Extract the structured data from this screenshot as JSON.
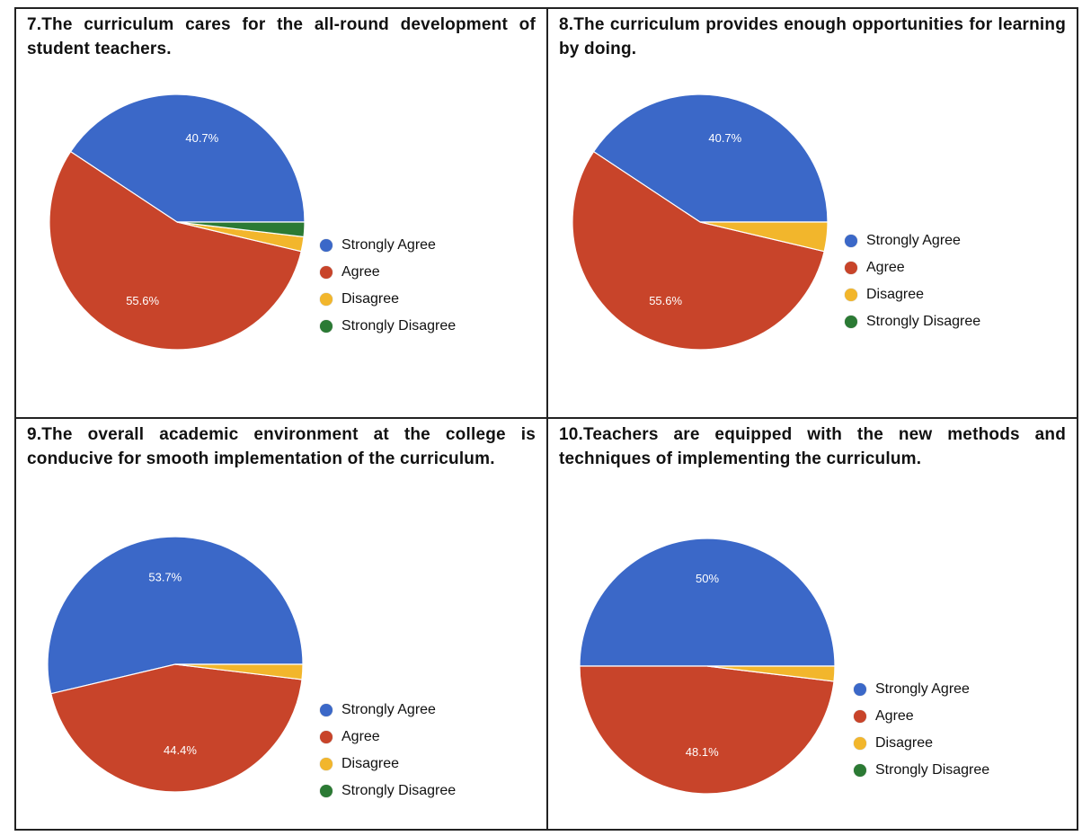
{
  "chart_data": [
    {
      "type": "pie",
      "title": "7.The curriculum cares for the all-round development of student teachers.",
      "categories": [
        "Strongly Agree",
        "Agree",
        "Disagree",
        "Strongly Disagree"
      ],
      "values": [
        40.7,
        55.6,
        1.85,
        1.85
      ],
      "data_labels": [
        "40.7%",
        "55.6%",
        "",
        ""
      ],
      "legend_position": "right"
    },
    {
      "type": "pie",
      "title": "8.The curriculum provides enough opportunities for learning by doing.",
      "categories": [
        "Strongly Agree",
        "Agree",
        "Disagree",
        "Strongly Disagree"
      ],
      "values": [
        40.7,
        55.6,
        3.7,
        0
      ],
      "data_labels": [
        "40.7%",
        "55.6%",
        "",
        ""
      ],
      "legend_position": "right"
    },
    {
      "type": "pie",
      "title": "9.The overall academic environment at the college is conducive for smooth implementation of the curriculum.",
      "categories": [
        "Strongly Agree",
        "Agree",
        "Disagree",
        "Strongly Disagree"
      ],
      "values": [
        53.7,
        44.4,
        1.9,
        0
      ],
      "data_labels": [
        "53.7%",
        "44.4%",
        "",
        ""
      ],
      "legend_position": "right"
    },
    {
      "type": "pie",
      "title": "10.Teachers are equipped with the new methods and techniques of implementing the curriculum.",
      "categories": [
        "Strongly Agree",
        "Agree",
        "Disagree",
        "Strongly Disagree"
      ],
      "values": [
        50,
        48.1,
        1.9,
        0
      ],
      "data_labels": [
        "50%",
        "48.1%",
        "",
        ""
      ],
      "legend_position": "right"
    }
  ],
  "colors": {
    "Strongly Agree": "#3b68c8",
    "Agree": "#c8442a",
    "Disagree": "#f2b62c",
    "Strongly Disagree": "#2b7a34"
  }
}
